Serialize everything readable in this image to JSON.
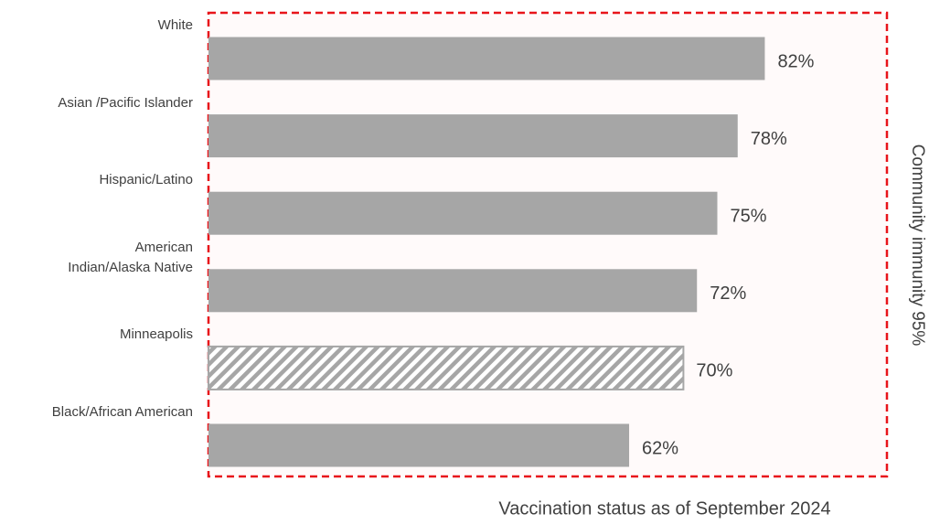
{
  "chart_data": {
    "type": "hbar",
    "categories": [
      "White",
      "Asian /Pacific Islander",
      "Hispanic/Latino",
      "American\nIndian/Alaska Native",
      "Minneapolis",
      "Black/African American"
    ],
    "values": [
      82,
      78,
      75,
      72,
      70,
      62
    ],
    "value_labels": [
      "82%",
      "78%",
      "75%",
      "72%",
      "70%",
      "62%"
    ],
    "color": "#a6a6a6",
    "hatched_index": 4,
    "xlim": [
      0,
      100
    ],
    "annotations": [
      "Community immunity  95%",
      "Vaccination status as of September 2024"
    ]
  }
}
